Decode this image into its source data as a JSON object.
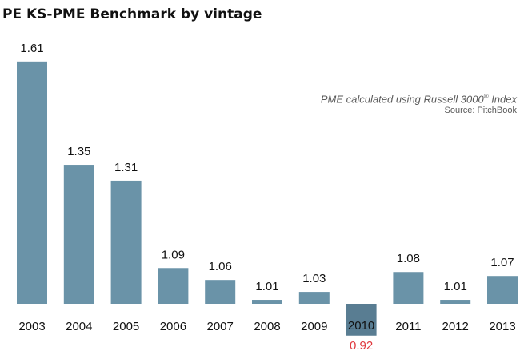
{
  "chart_data": {
    "type": "bar",
    "title": "PE KS-PME Benchmark by vintage",
    "note": {
      "prefix": "PME calculated using Russell 3000",
      "registered": "®",
      "suffix": " Index"
    },
    "source": "Source: PitchBook",
    "categories": [
      "2003",
      "2004",
      "2005",
      "2006",
      "2007",
      "2008",
      "2009",
      "2010",
      "2011",
      "2012",
      "2013"
    ],
    "values": [
      1.61,
      1.35,
      1.31,
      1.09,
      1.06,
      1.01,
      1.03,
      0.92,
      1.08,
      1.01,
      1.07
    ],
    "value_labels": [
      "1.61",
      "1.35",
      "1.31",
      "1.09",
      "1.06",
      "1.01",
      "1.03",
      "0.92",
      "1.08",
      "1.01",
      "1.07"
    ],
    "baseline": 1.0,
    "xlabel": "",
    "ylabel": "",
    "grid": false,
    "legend": "none",
    "colors": {
      "bar": "#6a93a8",
      "highlight_bar": "#597d92",
      "below_baseline_label": "#e0393e",
      "text": "#111111",
      "axis": "#555555"
    }
  }
}
